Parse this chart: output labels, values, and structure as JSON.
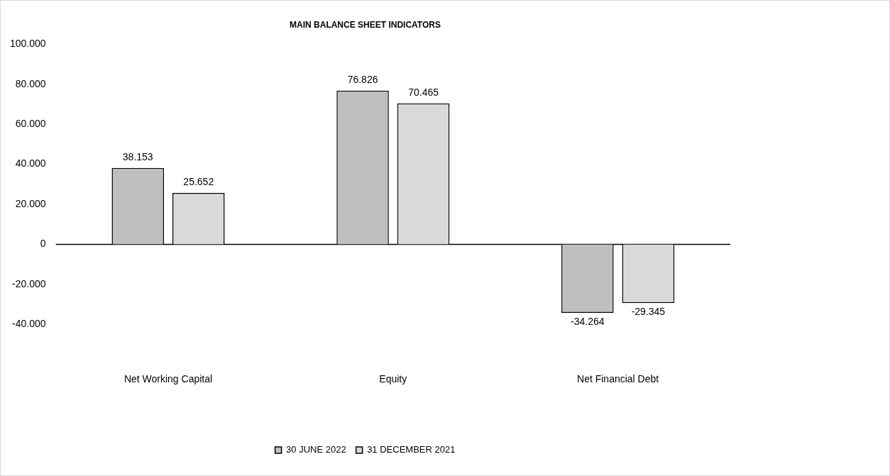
{
  "chart_data": {
    "type": "bar",
    "title": "MAIN BALANCE SHEET INDICATORS",
    "categories": [
      "Net Working Capital",
      "Equity",
      "Net Financial Debt"
    ],
    "series": [
      {
        "name": "30 JUNE 2022",
        "color": "#bfbfbf",
        "values": [
          38153,
          76826,
          -34264
        ],
        "value_labels": [
          "38.153",
          "76.826",
          "-34.264"
        ]
      },
      {
        "name": "31 DECEMBER 2021",
        "color": "#d9d9d9",
        "values": [
          25652,
          70465,
          -29345
        ],
        "value_labels": [
          "25.652",
          "70.465",
          "-29.345"
        ]
      }
    ],
    "ylim": [
      -40000,
      100000
    ],
    "yticks": [
      {
        "value": -40000,
        "label": "-40.000"
      },
      {
        "value": -20000,
        "label": "-20.000"
      },
      0,
      {
        "value": 20000,
        "label": "20.000"
      },
      {
        "value": 40000,
        "label": "40.000"
      },
      {
        "value": 60000,
        "label": "60.000"
      },
      {
        "value": 80000,
        "label": "80.000"
      },
      {
        "value": 100000,
        "label": "100.000"
      }
    ],
    "ref_lines": [
      {
        "axis": "y",
        "value": 0,
        "color": "#000000"
      }
    ],
    "grid": false,
    "legend": "bottom"
  }
}
